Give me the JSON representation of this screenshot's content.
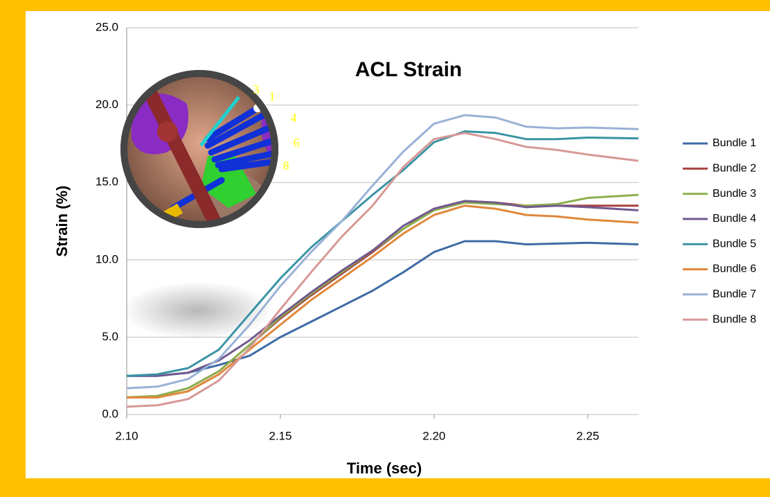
{
  "chart_data": {
    "type": "line",
    "title": "ACL Strain",
    "x_label": "Time (sec)",
    "y_label": "Strain (%)",
    "annotations": [
      "3",
      "1",
      "4",
      "6",
      "8"
    ],
    "x": [
      2.1,
      2.11,
      2.12,
      2.13,
      2.14,
      2.15,
      2.16,
      2.17,
      2.18,
      2.19,
      2.2,
      2.21,
      2.22,
      2.23,
      2.24,
      2.25,
      2.2665
    ],
    "xlim": [
      2.1,
      2.2665
    ],
    "xticks": [
      {
        "value": 2.1,
        "label": "2.10"
      },
      2.15,
      {
        "value": 2.2,
        "label": "2.20"
      },
      2.25
    ],
    "ylim": [
      0,
      25
    ],
    "yticks": [
      {
        "value": 0,
        "label": "0.0"
      },
      {
        "value": 5,
        "label": "5.0"
      },
      {
        "value": 10,
        "label": "10.0"
      },
      {
        "value": 15,
        "label": "15.0"
      },
      {
        "value": 20,
        "label": "20.0"
      },
      {
        "value": 25,
        "label": "25.0"
      }
    ],
    "grid": true,
    "legend": "right",
    "series": [
      {
        "name": "Bundle 1",
        "color": "#3D6BA6",
        "values": [
          2.5,
          2.5,
          2.7,
          3.2,
          3.8,
          5.0,
          6.0,
          7.0,
          8.0,
          9.2,
          10.5,
          11.2,
          11.2,
          11.0,
          11.05,
          11.1,
          11.0
        ]
      },
      {
        "name": "Bundle 2",
        "color": "#A8403D",
        "values": [
          1.1,
          1.2,
          1.7,
          2.8,
          4.5,
          6.2,
          7.7,
          9.1,
          10.5,
          12.0,
          13.3,
          13.8,
          13.7,
          13.5,
          13.5,
          13.5,
          13.5
        ]
      },
      {
        "name": "Bundle 3",
        "color": "#8CB04E",
        "values": [
          1.1,
          1.2,
          1.7,
          2.8,
          4.5,
          6.3,
          7.8,
          9.2,
          10.6,
          12.0,
          13.2,
          13.7,
          13.6,
          13.5,
          13.6,
          14.0,
          14.2
        ]
      },
      {
        "name": "Bundle 4",
        "color": "#71598F",
        "values": [
          2.5,
          2.5,
          2.7,
          3.5,
          4.8,
          6.4,
          7.9,
          9.3,
          10.6,
          12.2,
          13.3,
          13.8,
          13.7,
          13.4,
          13.5,
          13.4,
          13.2
        ]
      },
      {
        "name": "Bundle 5",
        "color": "#3A93A4",
        "values": [
          2.5,
          2.6,
          3.0,
          4.2,
          6.5,
          8.8,
          10.8,
          12.5,
          14.2,
          15.8,
          17.6,
          18.3,
          18.2,
          17.8,
          17.8,
          17.9,
          17.85
        ]
      },
      {
        "name": "Bundle 6",
        "color": "#E0873A",
        "values": [
          1.1,
          1.1,
          1.5,
          2.6,
          4.2,
          5.8,
          7.4,
          8.8,
          10.2,
          11.7,
          12.9,
          13.5,
          13.3,
          12.9,
          12.8,
          12.6,
          12.4
        ]
      },
      {
        "name": "Bundle 7",
        "color": "#98B1D6",
        "values": [
          1.7,
          1.8,
          2.3,
          3.6,
          5.8,
          8.3,
          10.5,
          12.5,
          14.8,
          17.0,
          18.8,
          19.35,
          19.2,
          18.6,
          18.5,
          18.55,
          18.45
        ]
      },
      {
        "name": "Bundle 8",
        "color": "#D69896",
        "values": [
          0.5,
          0.6,
          1.0,
          2.2,
          4.3,
          6.8,
          9.2,
          11.5,
          13.5,
          16.0,
          17.8,
          18.2,
          17.8,
          17.3,
          17.1,
          16.8,
          16.4
        ]
      }
    ]
  }
}
